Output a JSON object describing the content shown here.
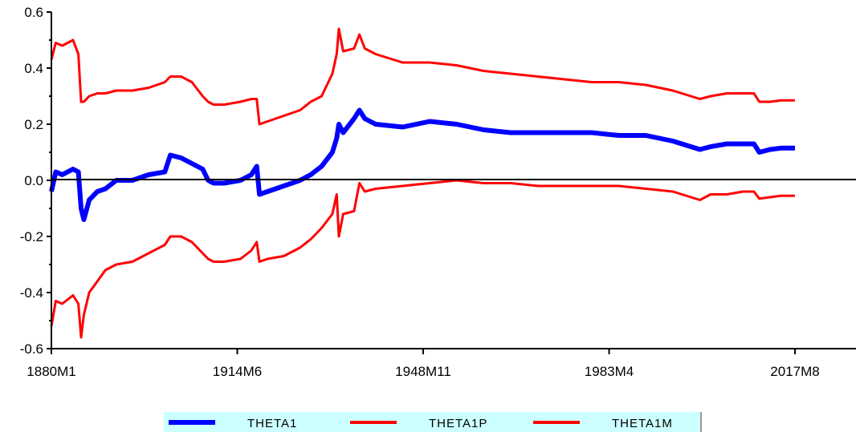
{
  "chart_data": {
    "type": "line",
    "title": "",
    "xlabel": "",
    "ylabel": "",
    "x_ticks": [
      "1880M1",
      "1914M6",
      "1948M11",
      "1983M4",
      "2017M8"
    ],
    "y_ticks": [
      "0.6",
      "0.4",
      "0.2",
      "0.0",
      "-0.2",
      "-0.4",
      "-0.6"
    ],
    "ylim": [
      -0.6,
      0.6
    ],
    "xlim": [
      1880.0,
      2017.6
    ],
    "grid": false,
    "zero_line": true,
    "legend_position": "bottom-center",
    "series": [
      {
        "name": "THETA1",
        "color": "#0000ff",
        "x": [
          1880.0,
          1880.8,
          1882.0,
          1884.0,
          1885.0,
          1885.5,
          1886.0,
          1887.0,
          1888.5,
          1890.0,
          1892.0,
          1895.0,
          1898.0,
          1901.0,
          1902.0,
          1904.0,
          1906.0,
          1908.0,
          1909.0,
          1910.0,
          1912.0,
          1915.0,
          1917.0,
          1918.0,
          1918.5,
          1920.0,
          1923.0,
          1926.0,
          1928.0,
          1930.0,
          1932.0,
          1932.8,
          1933.2,
          1934.0,
          1936.0,
          1937.0,
          1938.0,
          1940.0,
          1945.0,
          1950.0,
          1955.0,
          1960.0,
          1965.0,
          1970.0,
          1975.0,
          1980.0,
          1985.0,
          1990.0,
          1995.0,
          2000.0,
          2002.0,
          2005.0,
          2008.0,
          2010.0,
          2011.0,
          2013.0,
          2015.0,
          2017.6
        ],
        "values": [
          -0.04,
          0.03,
          0.02,
          0.04,
          0.03,
          -0.1,
          -0.14,
          -0.07,
          -0.04,
          -0.03,
          0.0,
          0.0,
          0.02,
          0.03,
          0.09,
          0.08,
          0.06,
          0.04,
          0.0,
          -0.01,
          -0.01,
          0.0,
          0.02,
          0.05,
          -0.05,
          -0.04,
          -0.02,
          0.0,
          0.02,
          0.05,
          0.1,
          0.15,
          0.2,
          0.17,
          0.22,
          0.25,
          0.22,
          0.2,
          0.19,
          0.21,
          0.2,
          0.18,
          0.17,
          0.17,
          0.17,
          0.17,
          0.16,
          0.16,
          0.14,
          0.11,
          0.12,
          0.13,
          0.13,
          0.13,
          0.1,
          0.11,
          0.115,
          0.115
        ]
      },
      {
        "name": "THETA1P",
        "color": "#ff0000",
        "x": [
          1880.0,
          1880.8,
          1882.0,
          1884.0,
          1885.0,
          1885.5,
          1886.0,
          1887.0,
          1888.5,
          1890.0,
          1892.0,
          1895.0,
          1898.0,
          1901.0,
          1902.0,
          1904.0,
          1906.0,
          1908.0,
          1909.0,
          1910.0,
          1912.0,
          1915.0,
          1917.0,
          1918.0,
          1918.5,
          1920.0,
          1923.0,
          1926.0,
          1928.0,
          1930.0,
          1932.0,
          1932.8,
          1933.2,
          1934.0,
          1936.0,
          1937.0,
          1938.0,
          1940.0,
          1945.0,
          1950.0,
          1955.0,
          1960.0,
          1965.0,
          1970.0,
          1975.0,
          1980.0,
          1985.0,
          1990.0,
          1995.0,
          2000.0,
          2002.0,
          2005.0,
          2008.0,
          2010.0,
          2011.0,
          2013.0,
          2015.0,
          2017.6
        ],
        "values": [
          0.43,
          0.49,
          0.48,
          0.5,
          0.45,
          0.28,
          0.28,
          0.3,
          0.31,
          0.31,
          0.32,
          0.32,
          0.33,
          0.35,
          0.37,
          0.37,
          0.35,
          0.3,
          0.28,
          0.27,
          0.27,
          0.28,
          0.29,
          0.29,
          0.2,
          0.21,
          0.23,
          0.25,
          0.28,
          0.3,
          0.38,
          0.45,
          0.54,
          0.46,
          0.47,
          0.52,
          0.47,
          0.45,
          0.42,
          0.42,
          0.41,
          0.39,
          0.38,
          0.37,
          0.36,
          0.35,
          0.35,
          0.34,
          0.32,
          0.29,
          0.3,
          0.31,
          0.31,
          0.31,
          0.28,
          0.28,
          0.285,
          0.285
        ]
      },
      {
        "name": "THETA1M",
        "color": "#ff0000",
        "x": [
          1880.0,
          1880.8,
          1882.0,
          1884.0,
          1885.0,
          1885.5,
          1886.0,
          1887.0,
          1888.5,
          1890.0,
          1892.0,
          1895.0,
          1898.0,
          1901.0,
          1902.0,
          1904.0,
          1906.0,
          1908.0,
          1909.0,
          1910.0,
          1912.0,
          1915.0,
          1917.0,
          1918.0,
          1918.5,
          1920.0,
          1923.0,
          1926.0,
          1928.0,
          1930.0,
          1932.0,
          1932.8,
          1933.2,
          1934.0,
          1936.0,
          1937.0,
          1938.0,
          1940.0,
          1945.0,
          1950.0,
          1955.0,
          1960.0,
          1965.0,
          1970.0,
          1975.0,
          1980.0,
          1985.0,
          1990.0,
          1995.0,
          2000.0,
          2002.0,
          2005.0,
          2008.0,
          2010.0,
          2011.0,
          2013.0,
          2015.0,
          2017.6
        ],
        "values": [
          -0.52,
          -0.43,
          -0.44,
          -0.41,
          -0.44,
          -0.56,
          -0.48,
          -0.4,
          -0.36,
          -0.32,
          -0.3,
          -0.29,
          -0.26,
          -0.23,
          -0.2,
          -0.2,
          -0.22,
          -0.26,
          -0.28,
          -0.29,
          -0.29,
          -0.28,
          -0.25,
          -0.22,
          -0.29,
          -0.28,
          -0.27,
          -0.24,
          -0.21,
          -0.17,
          -0.12,
          -0.05,
          -0.2,
          -0.12,
          -0.11,
          -0.01,
          -0.04,
          -0.03,
          -0.02,
          -0.01,
          0.0,
          -0.01,
          -0.01,
          -0.02,
          -0.02,
          -0.02,
          -0.02,
          -0.03,
          -0.04,
          -0.07,
          -0.05,
          -0.05,
          -0.04,
          -0.04,
          -0.065,
          -0.06,
          -0.055,
          -0.055
        ]
      }
    ]
  }
}
